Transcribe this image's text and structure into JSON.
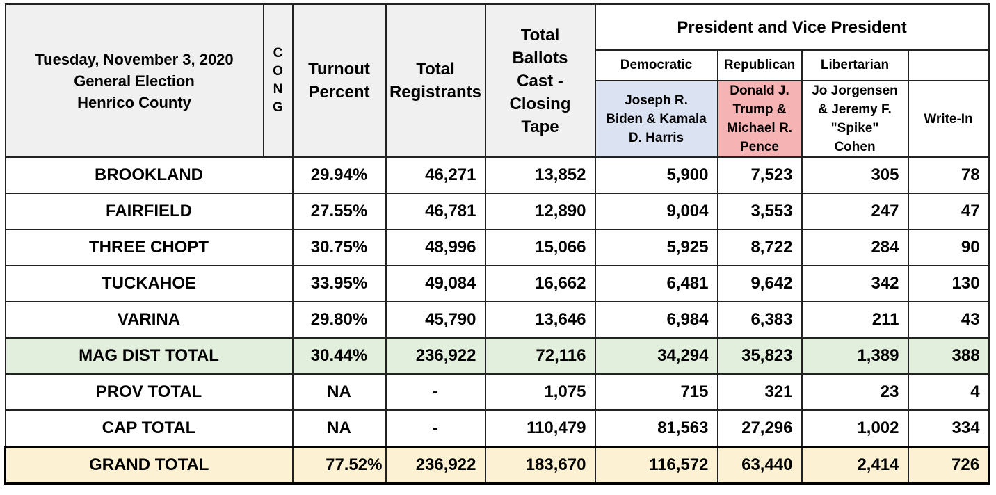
{
  "header": {
    "title_lines": [
      "Tuesday, November 3, 2020",
      "General Election",
      "Henrico County"
    ],
    "cong_letters": [
      "C",
      "O",
      "N",
      "G"
    ],
    "turnout_lines": [
      "Turnout",
      "Percent"
    ],
    "registrants_lines": [
      "Total",
      "Registrants"
    ],
    "ballots_lines": [
      "Total",
      "Ballots",
      "Cast -",
      "Closing",
      "Tape"
    ],
    "race": "President and Vice President",
    "parties": [
      "Democratic",
      "Republican",
      "Libertarian"
    ],
    "candidates": [
      [
        "Joseph R.",
        "Biden & Kamala",
        "D. Harris"
      ],
      [
        "Donald J.",
        "Trump &",
        "Michael R.",
        "Pence"
      ],
      [
        "Jo Jorgensen",
        "& Jeremy F.",
        "\"Spike\"",
        "Cohen"
      ],
      [
        "Write-In"
      ]
    ]
  },
  "rows": [
    {
      "name": "BROOKLAND",
      "turnout": "29.94%",
      "registrants": "46,271",
      "ballots": "13,852",
      "dem": "5,900",
      "rep": "7,523",
      "lib": "305",
      "writein": "78",
      "style": "normal"
    },
    {
      "name": "FAIRFIELD",
      "turnout": "27.55%",
      "registrants": "46,781",
      "ballots": "12,890",
      "dem": "9,004",
      "rep": "3,553",
      "lib": "247",
      "writein": "47",
      "style": "normal"
    },
    {
      "name": "THREE CHOPT",
      "turnout": "30.75%",
      "registrants": "48,996",
      "ballots": "15,066",
      "dem": "5,925",
      "rep": "8,722",
      "lib": "284",
      "writein": "90",
      "style": "normal"
    },
    {
      "name": "TUCKAHOE",
      "turnout": "33.95%",
      "registrants": "49,084",
      "ballots": "16,662",
      "dem": "6,481",
      "rep": "9,642",
      "lib": "342",
      "writein": "130",
      "style": "normal"
    },
    {
      "name": "VARINA",
      "turnout": "29.80%",
      "registrants": "45,790",
      "ballots": "13,646",
      "dem": "6,984",
      "rep": "6,383",
      "lib": "211",
      "writein": "43",
      "style": "normal"
    },
    {
      "name": "MAG DIST TOTAL",
      "turnout": "30.44%",
      "registrants": "236,922",
      "ballots": "72,116",
      "dem": "34,294",
      "rep": "35,823",
      "lib": "1,389",
      "writein": "388",
      "style": "green"
    },
    {
      "name": "PROV TOTAL",
      "turnout": "NA",
      "registrants": "-",
      "ballots": "1,075",
      "dem": "715",
      "rep": "321",
      "lib": "23",
      "writein": "4",
      "style": "normal"
    },
    {
      "name": "CAP TOTAL",
      "turnout": "NA",
      "registrants": "-",
      "ballots": "110,479",
      "dem": "81,563",
      "rep": "27,296",
      "lib": "1,002",
      "writein": "334",
      "style": "normal"
    },
    {
      "name": "GRAND TOTAL",
      "turnout": "77.52%",
      "registrants": "236,922",
      "ballots": "183,670",
      "dem": "116,572",
      "rep": "63,440",
      "lib": "2,414",
      "writein": "726",
      "style": "yellow"
    }
  ],
  "colors": {
    "democratic": "#dbe3f2",
    "republican": "#f6b3b3",
    "mag_total": "#e3efdd",
    "grand_total": "#fdf1d3",
    "header_grey": "#f0f0f0"
  }
}
